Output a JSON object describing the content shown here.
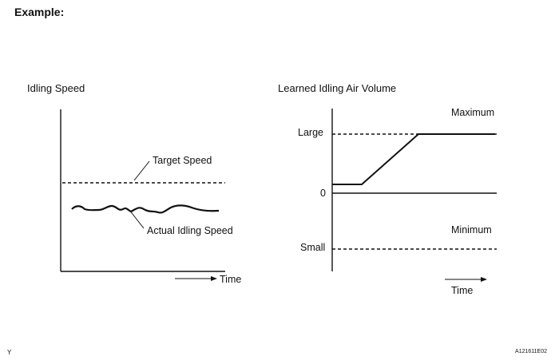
{
  "heading": "Example:",
  "left_chart": {
    "title": "Idling Speed",
    "target_label": "Target Speed",
    "actual_label": "Actual Idling Speed",
    "time_label": "Time"
  },
  "right_chart": {
    "title": "Learned Idling Air Volume",
    "maximum_label": "Maximum",
    "large_label": "Large",
    "zero_label": "0",
    "minimum_label": "Minimum",
    "small_label": "Small",
    "time_label": "Time"
  },
  "footer": {
    "left_mark": "Y",
    "figure_code": "A121611E02"
  }
}
